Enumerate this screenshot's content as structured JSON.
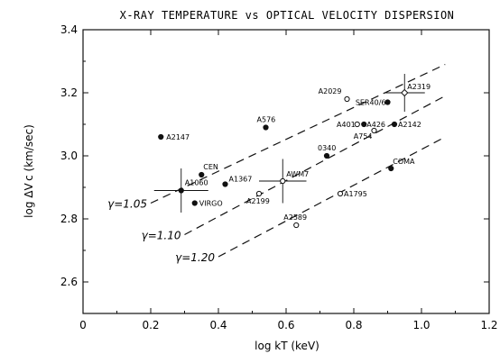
{
  "chart_data": {
    "type": "scatter",
    "title": "X-RAY TEMPERATURE vs OPTICAL VELOCITY DISPERSION",
    "xlabel": "log kT (keV)",
    "ylabel": "log ΔV c (km/sec)",
    "xlim": [
      0,
      1.2
    ],
    "ylim": [
      2.5,
      3.4
    ],
    "xticks": [
      "0",
      "0.2",
      "0.4",
      "0.6",
      "0.8",
      "1.0",
      "1.2"
    ],
    "yticks": [
      "2.6",
      "2.8",
      "3.0",
      "3.2",
      "3.4"
    ],
    "grid": false,
    "points": [
      {
        "label": "A2147",
        "x": 0.23,
        "y": 3.06,
        "filled": true
      },
      {
        "label": "A576",
        "x": 0.54,
        "y": 3.09,
        "filled": true
      },
      {
        "label": "CEN",
        "x": 0.35,
        "y": 2.94,
        "filled": true
      },
      {
        "label": "A1367",
        "x": 0.42,
        "y": 2.91,
        "filled": true
      },
      {
        "label": "A1060",
        "x": 0.29,
        "y": 2.89,
        "filled": true
      },
      {
        "label": "VIRGO",
        "x": 0.33,
        "y": 2.85,
        "filled": true
      },
      {
        "label": "A2199",
        "x": 0.52,
        "y": 2.88,
        "filled": false
      },
      {
        "label": "AWM7",
        "x": 0.59,
        "y": 2.92,
        "filled": false
      },
      {
        "label": "0340",
        "x": 0.72,
        "y": 3.0,
        "filled": true
      },
      {
        "label": "A2589",
        "x": 0.63,
        "y": 2.78,
        "filled": false
      },
      {
        "label": "A1795",
        "x": 0.76,
        "y": 2.88,
        "filled": false
      },
      {
        "label": "A2029",
        "x": 0.78,
        "y": 3.18,
        "filled": false
      },
      {
        "label": "A401",
        "x": 0.81,
        "y": 3.1,
        "filled": false
      },
      {
        "label": "A426",
        "x": 0.83,
        "y": 3.1,
        "filled": true
      },
      {
        "label": "SER40/6",
        "x": 0.9,
        "y": 3.17,
        "filled": true
      },
      {
        "label": "A2319",
        "x": 0.95,
        "y": 3.2,
        "filled": false
      },
      {
        "label": "A754",
        "x": 0.86,
        "y": 3.08,
        "filled": false
      },
      {
        "label": "A2142",
        "x": 0.92,
        "y": 3.1,
        "filled": true
      },
      {
        "label": "COMA",
        "x": 0.91,
        "y": 2.96,
        "filled": true
      }
    ],
    "error_bars": [
      {
        "x": 0.29,
        "y": 2.89,
        "xerr": 0.08,
        "yerr": 0.07
      },
      {
        "x": 0.59,
        "y": 2.92,
        "xerr": 0.07,
        "yerr": 0.07
      },
      {
        "x": 0.95,
        "y": 3.2,
        "xerr": 0.06,
        "yerr": 0.06
      }
    ],
    "lines": [
      {
        "label": "γ=1.05",
        "x": [
          0.2,
          1.07
        ],
        "y": [
          2.85,
          3.29
        ],
        "style": "dashed"
      },
      {
        "label": "γ=1.10",
        "x": [
          0.3,
          1.07
        ],
        "y": [
          2.75,
          3.19
        ],
        "style": "dashed"
      },
      {
        "label": "γ=1.20",
        "x": [
          0.4,
          1.07
        ],
        "y": [
          2.68,
          3.06
        ],
        "style": "dashed"
      }
    ]
  }
}
